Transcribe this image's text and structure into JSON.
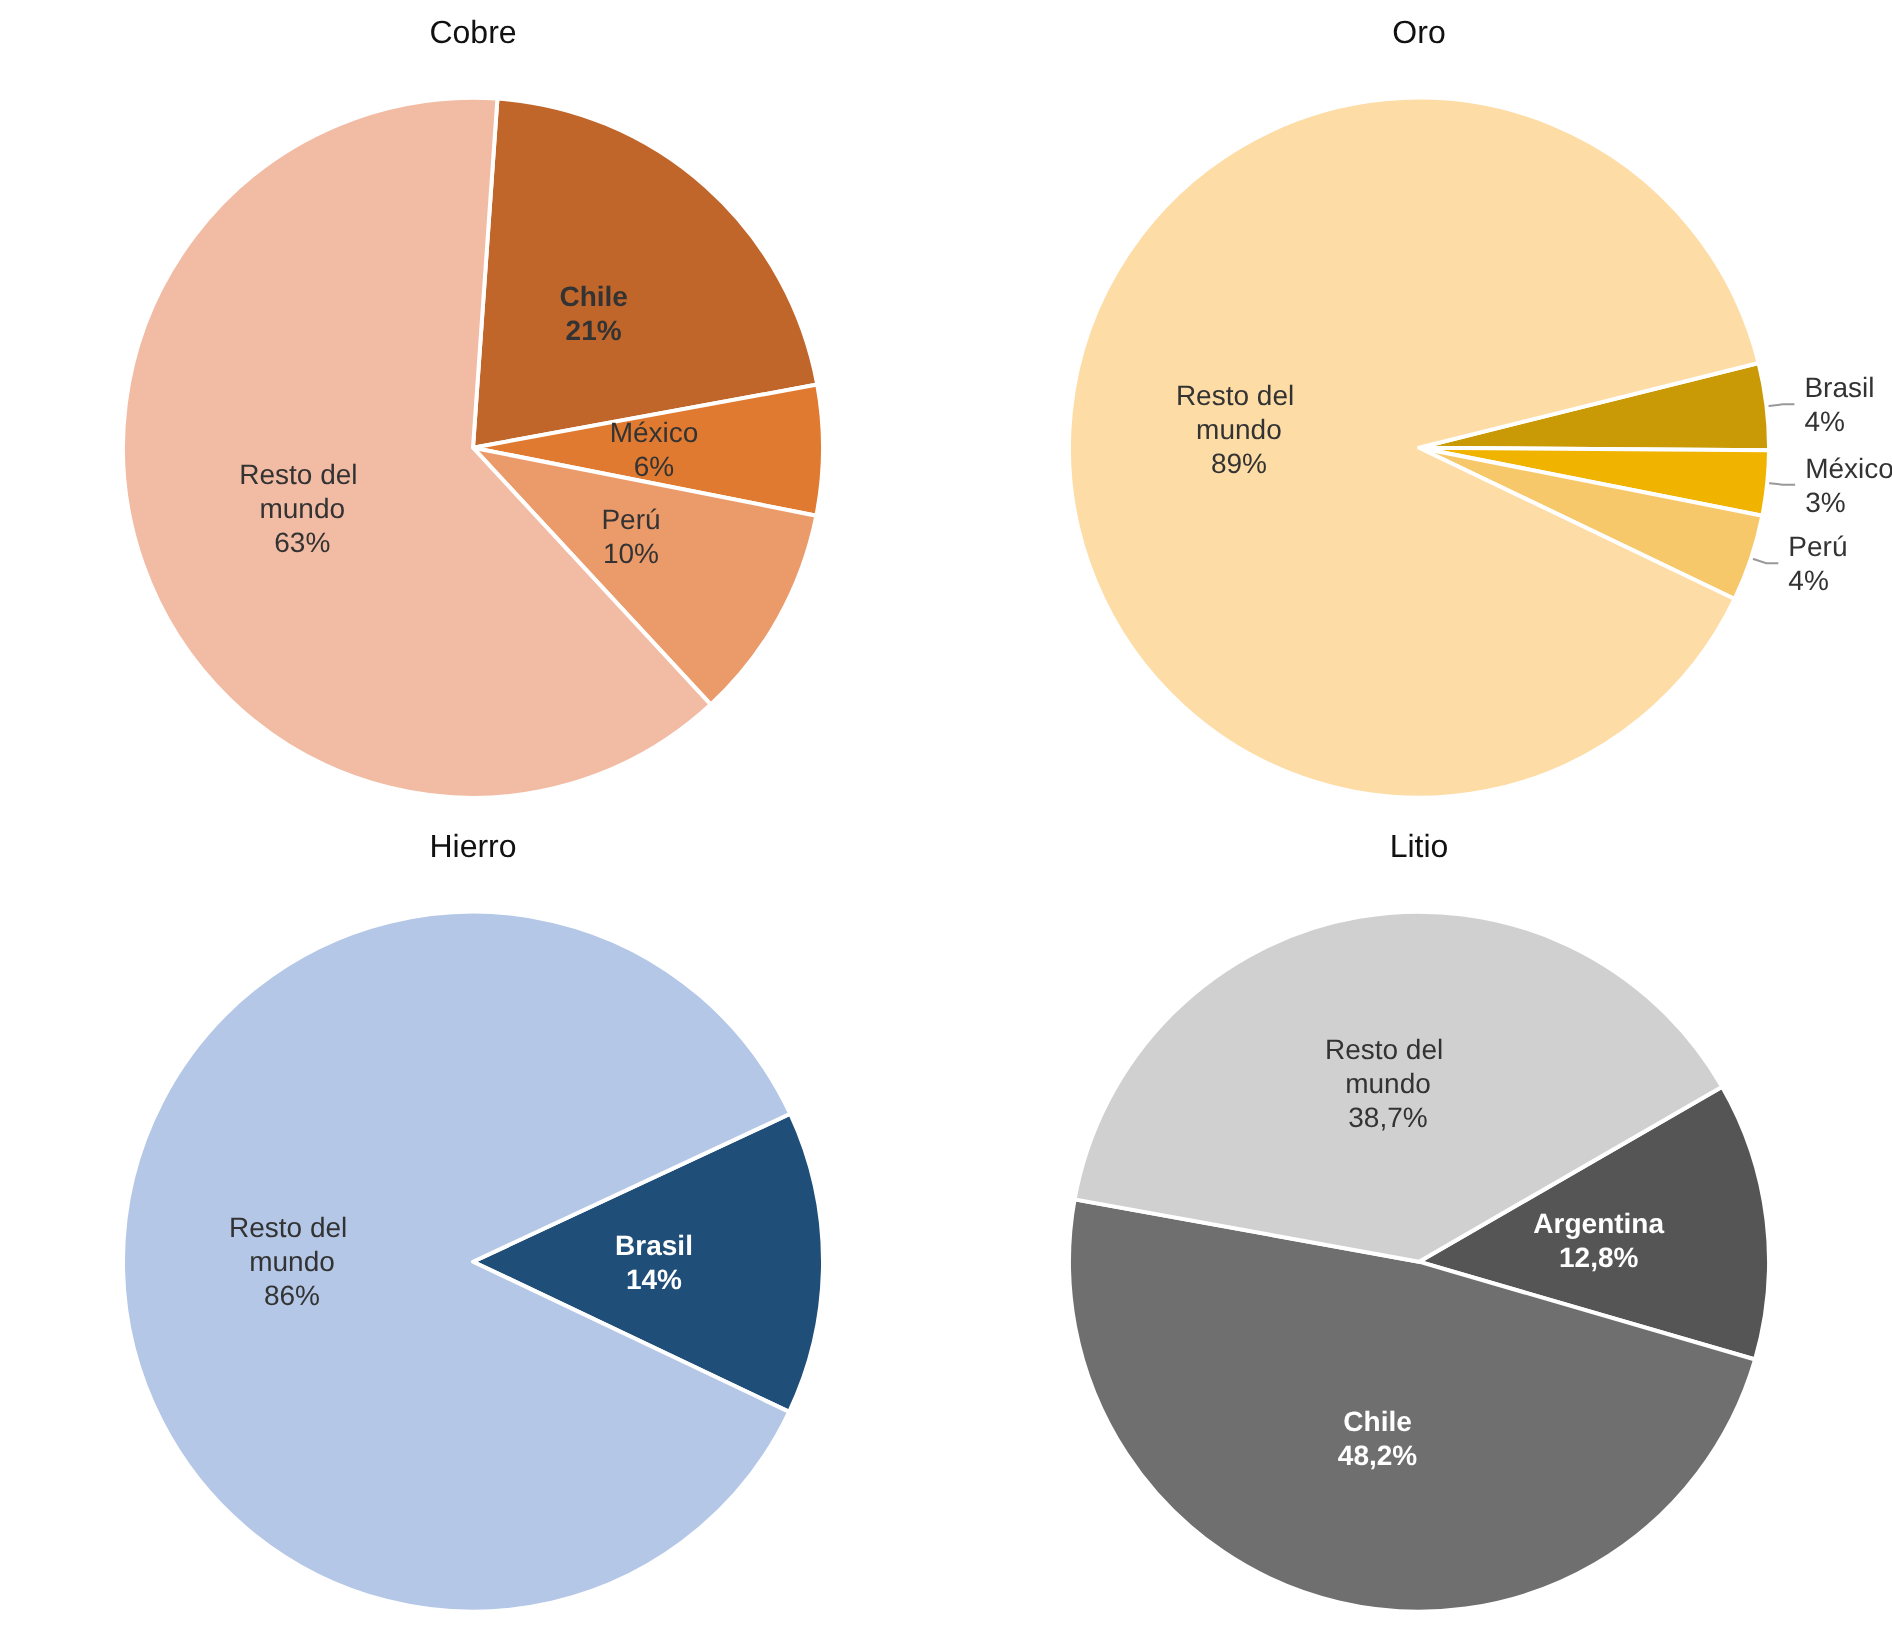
{
  "chart_data": [
    {
      "type": "pie",
      "title": "Cobre",
      "categories": [
        "Chile",
        "México",
        "Perú",
        "Resto del mundo"
      ],
      "values": [
        21,
        6,
        10,
        63
      ],
      "colors": [
        "#c0662a",
        "#e07a30",
        "#eb9a6a",
        "#f2bba3"
      ],
      "value_labels": [
        "21%",
        "6%",
        "10%",
        "63%"
      ]
    },
    {
      "type": "pie",
      "title": "Oro",
      "categories": [
        "Brasil",
        "México",
        "Perú",
        "Resto del mundo"
      ],
      "values": [
        4,
        3,
        4,
        89
      ],
      "colors": [
        "#c99a06",
        "#f0b400",
        "#f7c86a",
        "#fddca6"
      ],
      "value_labels": [
        "4%",
        "3%",
        "4%",
        "89%"
      ]
    },
    {
      "type": "pie",
      "title": "Hierro",
      "categories": [
        "Brasil",
        "Resto del mundo"
      ],
      "values": [
        14,
        86
      ],
      "colors": [
        "#1f4e79",
        "#b4c7e7"
      ],
      "value_labels": [
        "14%",
        "86%"
      ]
    },
    {
      "type": "pie",
      "title": "Litio",
      "categories": [
        "Argentina",
        "Chile",
        "Resto del mundo"
      ],
      "values": [
        12.8,
        48.2,
        38.7
      ],
      "colors": [
        "#555555",
        "#6f6f6f",
        "#d0d0d0"
      ],
      "value_labels": [
        "12,8%",
        "48,2%",
        "38,7%"
      ]
    }
  ]
}
